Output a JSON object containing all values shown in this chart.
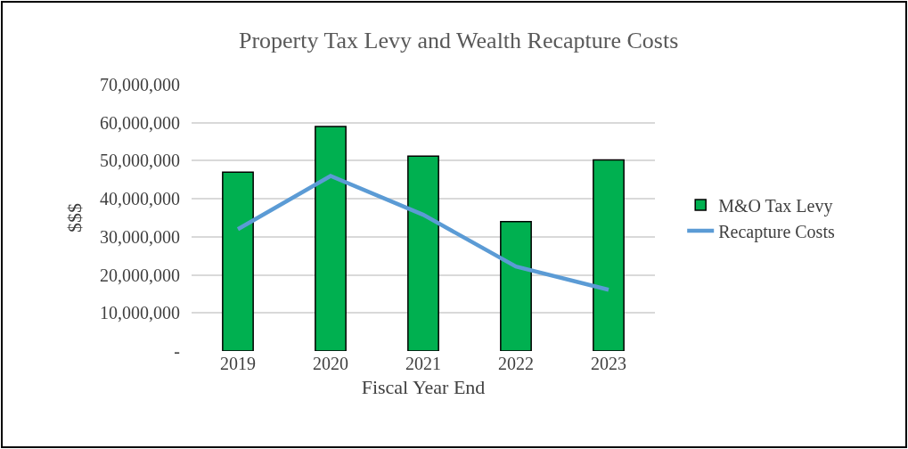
{
  "chart_data": {
    "type": "bar",
    "title": "Property Tax Levy and Wealth Recapture Costs",
    "xlabel": "Fiscal Year End",
    "ylabel": "$$$",
    "categories": [
      "2019",
      "2020",
      "2021",
      "2022",
      "2023"
    ],
    "series": [
      {
        "name": "M&O Tax Levy",
        "color": "#00b050",
        "values": [
          47000000,
          59000000,
          51200000,
          34000000,
          50200000
        ]
      },
      {
        "name": "Recapture Costs",
        "type": "line",
        "color": "#5b9bd5",
        "values": [
          32000000,
          46000000,
          35800000,
          22200000,
          16100000
        ]
      }
    ],
    "ylim": [
      0,
      70000000
    ],
    "yticks": [
      {
        "value": 0,
        "label": "-"
      },
      {
        "value": 10000000,
        "label": "10,000,000"
      },
      {
        "value": 20000000,
        "label": "20,000,000"
      },
      {
        "value": 30000000,
        "label": "30,000,000"
      },
      {
        "value": 40000000,
        "label": "40,000,000"
      },
      {
        "value": 50000000,
        "label": "50,000,000"
      },
      {
        "value": 60000000,
        "label": "60,000,000"
      },
      {
        "value": 70000000,
        "label": "70,000,000"
      }
    ],
    "grid": "y",
    "legend": "right",
    "marker": "none"
  }
}
